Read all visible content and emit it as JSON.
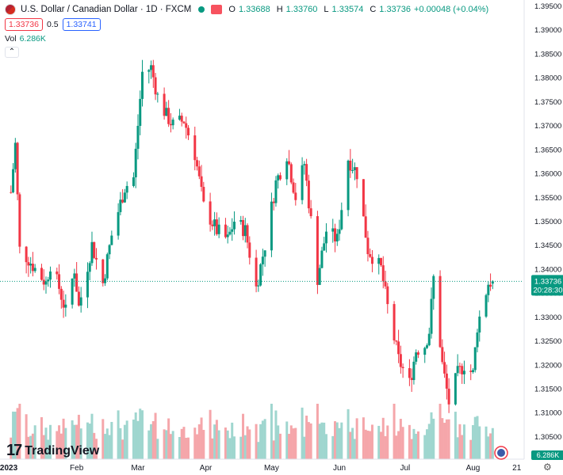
{
  "header": {
    "title": "U.S. Dollar / Canadian Dollar · 1D · FXCM",
    "ohlc": [
      {
        "key": "O",
        "value": "1.33688"
      },
      {
        "key": "H",
        "value": "1.33760"
      },
      {
        "key": "L",
        "value": "1.33574"
      },
      {
        "key": "C",
        "value": "1.33736"
      }
    ],
    "change": "+0.00048 (+0.04%)",
    "sell_price": "1.33736",
    "spread": "0.5",
    "buy_price": "1.33741",
    "volume_label": "Vol",
    "volume_value": "6.286K"
  },
  "colors": {
    "up": "#089981",
    "down": "#f23645",
    "up_vol": "#9fd6cf",
    "down_vol": "#f5a6aa"
  },
  "icons": {
    "settings": "gear-icon",
    "collapse": "chevron-up-icon",
    "logo": "tradingview-logo"
  },
  "brand": {
    "name": "TradingView"
  },
  "chart_data": {
    "type": "candlestick",
    "title": "U.S. Dollar / Canadian Dollar · 1D · FXCM",
    "ylim": [
      1.3035,
      1.3955
    ],
    "y_ticks": [
      "1.39500",
      "1.39000",
      "1.38500",
      "1.38000",
      "1.37500",
      "1.37000",
      "1.36500",
      "1.36000",
      "1.35500",
      "1.35000",
      "1.34500",
      "1.34000",
      "1.33500",
      "1.33000",
      "1.32500",
      "1.32000",
      "1.31500",
      "1.31000",
      "1.30500"
    ],
    "x_labels": [
      "2023",
      "Feb",
      "Mar",
      "Apr",
      "May",
      "Jun",
      "Jul",
      "Aug",
      "21"
    ],
    "grid": false,
    "last_price": "1.33736",
    "countdown": "20:28:30",
    "last_volume": "6.286K",
    "anchors": [
      [
        "2023-01-02",
        1.356
      ],
      [
        "2023-01-04",
        1.366
      ],
      [
        "2023-01-06",
        1.344
      ],
      [
        "2023-01-10",
        1.342
      ],
      [
        "2023-01-13",
        1.34
      ],
      [
        "2023-01-18",
        1.337
      ],
      [
        "2023-01-20",
        1.341
      ],
      [
        "2023-01-24",
        1.336
      ],
      [
        "2023-01-27",
        1.331
      ],
      [
        "2023-01-31",
        1.34
      ],
      [
        "2023-02-02",
        1.332
      ],
      [
        "2023-02-08",
        1.345
      ],
      [
        "2023-02-13",
        1.337
      ],
      [
        "2023-02-17",
        1.347
      ],
      [
        "2023-02-23",
        1.357
      ],
      [
        "2023-02-27",
        1.359
      ],
      [
        "2023-03-03",
        1.381
      ],
      [
        "2023-03-07",
        1.382
      ],
      [
        "2023-03-10",
        1.376
      ],
      [
        "2023-03-14",
        1.372
      ],
      [
        "2023-03-17",
        1.37
      ],
      [
        "2023-03-22",
        1.371
      ],
      [
        "2023-03-27",
        1.364
      ],
      [
        "2023-03-31",
        1.353
      ],
      [
        "2023-04-06",
        1.348
      ],
      [
        "2023-04-11",
        1.346
      ],
      [
        "2023-04-14",
        1.35
      ],
      [
        "2023-04-19",
        1.348
      ],
      [
        "2023-04-24",
        1.336
      ],
      [
        "2023-04-28",
        1.345
      ],
      [
        "2023-05-03",
        1.358
      ],
      [
        "2023-05-08",
        1.364
      ],
      [
        "2023-05-12",
        1.355
      ],
      [
        "2023-05-16",
        1.362
      ],
      [
        "2023-05-22",
        1.338
      ],
      [
        "2023-05-26",
        1.348
      ],
      [
        "2023-05-31",
        1.346
      ],
      [
        "2023-06-05",
        1.363
      ],
      [
        "2023-06-09",
        1.36
      ],
      [
        "2023-06-14",
        1.344
      ],
      [
        "2023-06-20",
        1.34
      ],
      [
        "2023-06-23",
        1.332
      ],
      [
        "2023-06-28",
        1.321
      ],
      [
        "2023-07-03",
        1.316
      ],
      [
        "2023-07-06",
        1.323
      ],
      [
        "2023-07-10",
        1.324
      ],
      [
        "2023-07-12",
        1.327
      ],
      [
        "2023-07-14",
        1.338
      ],
      [
        "2023-07-18",
        1.32
      ],
      [
        "2023-07-21",
        1.312
      ],
      [
        "2023-07-25",
        1.318
      ],
      [
        "2023-07-28",
        1.32
      ],
      [
        "2023-08-01",
        1.318
      ],
      [
        "2023-08-03",
        1.328
      ],
      [
        "2023-08-08",
        1.337
      ],
      [
        "2023-08-10",
        1.3374
      ]
    ],
    "volume_range": [
      1,
      5
    ]
  }
}
